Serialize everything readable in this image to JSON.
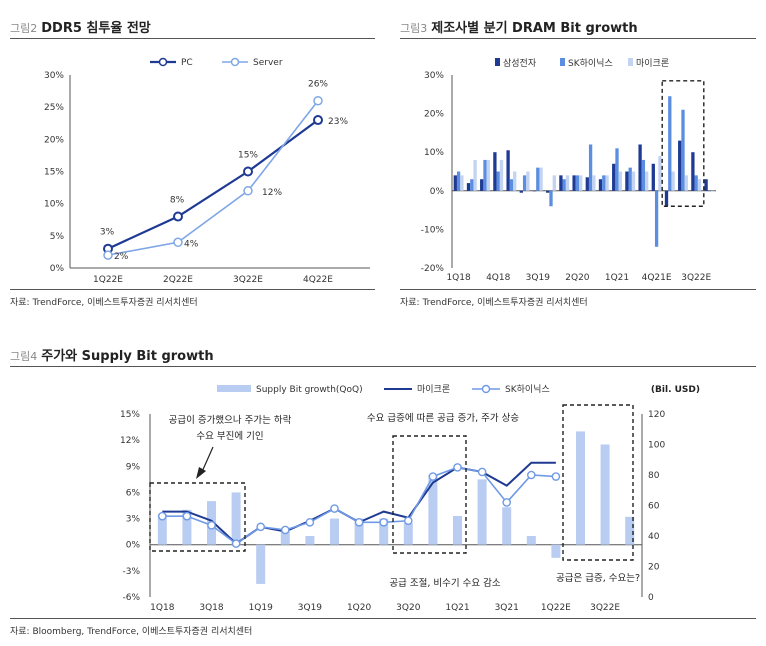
{
  "figures": {
    "fig2": {
      "num": "그림2",
      "title": "DDR5 침투율 전망",
      "source": "자료: TrendForce, 이베스트투자증권 리서치센터"
    },
    "fig3": {
      "num": "그림3",
      "title": "제조사별 분기 DRAM Bit growth",
      "source": "자료: TrendForce, 이베스트투자증권 리서치센터"
    },
    "fig4": {
      "num": "그림4",
      "title": "주가와 Supply Bit growth",
      "source": "자료: Bloomberg, TrendForce, 이베스트투자증권 리서치센터"
    }
  },
  "chart_data": [
    {
      "id": "ddr5",
      "type": "line",
      "categories": [
        "1Q22E",
        "2Q22E",
        "3Q22E",
        "4Q22E"
      ],
      "series": [
        {
          "name": "PC",
          "values": [
            3,
            8,
            15,
            23
          ],
          "labels": [
            "3%",
            "8%",
            "15%",
            "23%"
          ],
          "color": "#1f3a93"
        },
        {
          "name": "Server",
          "values": [
            2,
            4,
            12,
            26
          ],
          "labels": [
            "2%",
            "4%",
            "12%",
            "26%"
          ],
          "color": "#7fa6e6"
        }
      ],
      "ylim": [
        0,
        30
      ],
      "yticks": [
        "0%",
        "5%",
        "10%",
        "15%",
        "20%",
        "25%",
        "30%"
      ],
      "legend": "top"
    },
    {
      "id": "dram_bit_growth",
      "type": "bar",
      "categories": [
        "1Q18",
        "2Q18",
        "3Q18",
        "4Q18",
        "1Q19",
        "2Q19",
        "3Q19",
        "4Q19",
        "1Q20",
        "2Q20",
        "3Q20",
        "4Q20",
        "1Q21",
        "2Q21",
        "3Q21",
        "4Q21E",
        "1Q22E",
        "2Q22E",
        "3Q22E",
        "4Q22E"
      ],
      "xtick_labels": [
        "1Q18",
        "4Q18",
        "3Q19",
        "2Q20",
        "1Q21",
        "4Q21E",
        "3Q22E"
      ],
      "series": [
        {
          "name": "삼성전자",
          "color": "#1f3a93",
          "values": [
            4,
            2,
            3,
            10,
            10.5,
            -0.5,
            0,
            -0.5,
            4,
            4,
            3.5,
            3,
            7,
            5,
            12,
            7,
            -4,
            13,
            10,
            3
          ]
        },
        {
          "name": "SK하이닉스",
          "color": "#5b8ee0",
          "values": [
            5,
            3,
            8,
            5,
            3,
            4,
            6,
            -4,
            3,
            4,
            12,
            4,
            11,
            6,
            8,
            -14.5,
            24.5,
            21,
            4,
            0
          ]
        },
        {
          "name": "마이크론",
          "color": "#c3d3f2",
          "values": [
            4,
            8,
            8,
            8,
            5,
            5,
            6,
            4,
            4,
            4,
            4,
            4,
            5,
            5,
            5,
            9,
            5,
            4,
            3,
            0
          ]
        }
      ],
      "ylim": [
        -20,
        30
      ],
      "yticks": [
        "-20%",
        "-10%",
        "0%",
        "10%",
        "20%",
        "30%"
      ],
      "highlight_range": [
        "1Q22E",
        "3Q22E"
      ],
      "legend": "top"
    },
    {
      "id": "stock_vs_supply",
      "type": "bar",
      "categories": [
        "1Q18",
        "2Q18",
        "3Q18",
        "4Q18",
        "1Q19",
        "2Q19",
        "3Q19",
        "4Q19",
        "1Q20",
        "2Q20",
        "3Q20",
        "4Q20",
        "1Q21",
        "2Q21",
        "3Q21",
        "4Q21",
        "1Q22E",
        "2Q22E",
        "3Q22E",
        "4Q22E"
      ],
      "xtick_labels": [
        "1Q18",
        "3Q18",
        "1Q19",
        "3Q19",
        "1Q20",
        "3Q20",
        "1Q21",
        "3Q21",
        "1Q22E",
        "3Q22E"
      ],
      "bars": {
        "name": "Supply Bit growth(QoQ)",
        "color": "#b9ccf2",
        "values": [
          3.5,
          4,
          5,
          6,
          -4.5,
          1.5,
          1,
          3,
          3,
          3,
          2.5,
          8,
          3.3,
          7.5,
          4.3,
          1,
          -1.5,
          13,
          11.5,
          3.2
        ]
      },
      "lines": [
        {
          "name": "마이크론",
          "color": "#1f3a93",
          "values": [
            56,
            56,
            50,
            35,
            46,
            43,
            50,
            58,
            49,
            56,
            52,
            75,
            85,
            82,
            73,
            88,
            88,
            null,
            null,
            null
          ]
        },
        {
          "name": "SK하이닉스",
          "color": "#6f9ae6",
          "values": [
            53,
            53,
            47,
            35,
            46,
            44,
            49,
            58,
            49,
            49,
            50,
            79,
            85,
            82,
            62,
            80,
            79,
            null,
            null,
            null
          ]
        }
      ],
      "left_ylim": [
        -6,
        15
      ],
      "left_yticks": [
        "-6%",
        "-3%",
        "0%",
        "3%",
        "6%",
        "9%",
        "12%",
        "15%"
      ],
      "right_ylim": [
        0,
        120
      ],
      "right_yticks": [
        "0",
        "20",
        "40",
        "60",
        "80",
        "100",
        "120"
      ],
      "unit_label": "(Bil. USD)",
      "annotations": {
        "a1_line1": "공급이 증가했으나 주가는 하락",
        "a1_line2": "수요 부진에 기인",
        "a2": "수요 급증에 따른 공급 증가, 주가 상승",
        "a3": "공급 조절, 비수기 수요 감소",
        "a4": "공급은 급증, 수요는?"
      },
      "legend": "top"
    }
  ]
}
